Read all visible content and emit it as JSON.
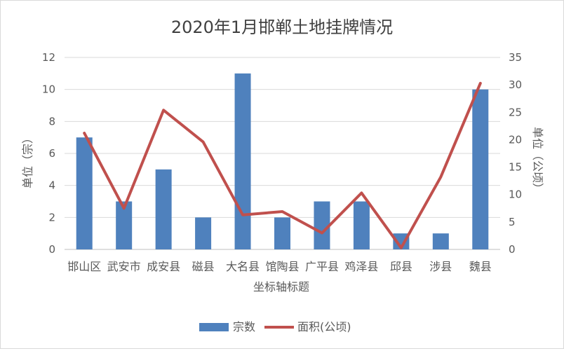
{
  "chart_data": {
    "type": "bar",
    "title": "2020年1月邯郸土地挂牌情况",
    "xlabel": "坐标轴标题",
    "ylabel_left": "单位（宗）",
    "ylabel_right": "单位（公顷）",
    "categories": [
      "邯山区",
      "武安市",
      "成安县",
      "磁县",
      "大名县",
      "馆陶县",
      "广平县",
      "鸡泽县",
      "邱县",
      "涉县",
      "魏县"
    ],
    "ylim_left": [
      0,
      12
    ],
    "yticks_left": [
      0,
      2,
      4,
      6,
      8,
      10,
      12
    ],
    "ylim_right": [
      0,
      35
    ],
    "yticks_right": [
      0,
      5,
      10,
      15,
      20,
      25,
      30,
      35
    ],
    "gridlines": true,
    "legend_position": "bottom",
    "series": [
      {
        "name": "宗数",
        "kind": "bar",
        "axis": "left",
        "color": "#4f81bd",
        "values": [
          7,
          3,
          5,
          2,
          11,
          2,
          3,
          3,
          1,
          1,
          10
        ]
      },
      {
        "name": "面积(公顷)",
        "kind": "line",
        "axis": "right",
        "color": "#c0504d",
        "values": [
          21.2,
          7.5,
          25.4,
          19.6,
          6.3,
          6.9,
          3.0,
          10.3,
          0.3,
          13.2,
          30.3
        ]
      }
    ]
  }
}
